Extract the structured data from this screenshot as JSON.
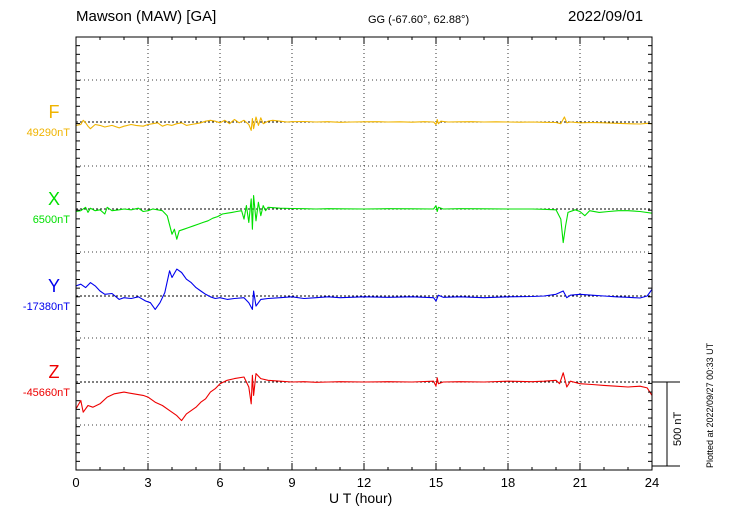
{
  "header": {
    "station": "Mawson (MAW)  [GA]",
    "coords": "GG (-67.60°,  62.88°)",
    "date": "2022/09/01"
  },
  "footer_note": "Plotted at 2022/09/27 00:33 UT",
  "scale_bar": {
    "label": "500 nT",
    "value_nT": 500
  },
  "chart_data": {
    "type": "line",
    "xlabel": "U T (hour)",
    "xlim": [
      0,
      24
    ],
    "xticks": [
      0,
      3,
      6,
      9,
      12,
      15,
      18,
      21,
      24
    ],
    "grid": true,
    "series": [
      {
        "name": "F",
        "baseline_label": "49290nT",
        "baseline_nT": 49290,
        "color": "#f0b400",
        "points": [
          [
            0,
            -20
          ],
          [
            0.2,
            -15
          ],
          [
            0.3,
            10
          ],
          [
            0.4,
            -5
          ],
          [
            0.5,
            -25
          ],
          [
            0.6,
            -40
          ],
          [
            0.8,
            -15
          ],
          [
            1.0,
            -20
          ],
          [
            1.2,
            -30
          ],
          [
            1.5,
            -20
          ],
          [
            1.8,
            -35
          ],
          [
            2.0,
            -25
          ],
          [
            2.3,
            -15
          ],
          [
            2.5,
            -20
          ],
          [
            2.8,
            -25
          ],
          [
            3.0,
            -15
          ],
          [
            3.2,
            -10
          ],
          [
            3.4,
            -5
          ],
          [
            3.6,
            -25
          ],
          [
            3.8,
            -15
          ],
          [
            4.0,
            -20
          ],
          [
            4.2,
            -10
          ],
          [
            4.4,
            -5
          ],
          [
            4.6,
            -20
          ],
          [
            4.8,
            -15
          ],
          [
            5.0,
            -10
          ],
          [
            5.2,
            -5
          ],
          [
            5.4,
            5
          ],
          [
            5.6,
            10
          ],
          [
            5.8,
            5
          ],
          [
            6.0,
            -5
          ],
          [
            6.2,
            10
          ],
          [
            6.4,
            -10
          ],
          [
            6.6,
            15
          ],
          [
            6.8,
            -5
          ],
          [
            7.0,
            10
          ],
          [
            7.2,
            -15
          ],
          [
            7.3,
            -50
          ],
          [
            7.35,
            20
          ],
          [
            7.4,
            -40
          ],
          [
            7.5,
            30
          ],
          [
            7.6,
            -20
          ],
          [
            7.7,
            25
          ],
          [
            7.8,
            -10
          ],
          [
            8.0,
            5
          ],
          [
            8.2,
            10
          ],
          [
            8.5,
            5
          ],
          [
            8.8,
            0
          ],
          [
            9.0,
            2
          ],
          [
            9.5,
            3
          ],
          [
            10,
            0
          ],
          [
            10.5,
            2
          ],
          [
            11,
            -2
          ],
          [
            11.5,
            0
          ],
          [
            12,
            1
          ],
          [
            12.5,
            2
          ],
          [
            13,
            0
          ],
          [
            13.5,
            1
          ],
          [
            14,
            -1
          ],
          [
            14.5,
            2
          ],
          [
            14.9,
            0
          ],
          [
            15.0,
            -15
          ],
          [
            15.05,
            15
          ],
          [
            15.1,
            -10
          ],
          [
            15.2,
            5
          ],
          [
            15.5,
            0
          ],
          [
            16,
            1
          ],
          [
            16.5,
            2
          ],
          [
            17,
            0
          ],
          [
            17.5,
            1
          ],
          [
            18,
            0
          ],
          [
            18.5,
            -1
          ],
          [
            19,
            0
          ],
          [
            19.5,
            -2
          ],
          [
            20,
            -3
          ],
          [
            20.2,
            -10
          ],
          [
            20.35,
            30
          ],
          [
            20.45,
            -5
          ],
          [
            20.6,
            0
          ],
          [
            21,
            -5
          ],
          [
            21.5,
            -3
          ],
          [
            22,
            -5
          ],
          [
            22.5,
            -8
          ],
          [
            23,
            -10
          ],
          [
            23.5,
            -12
          ],
          [
            23.8,
            -8
          ],
          [
            24,
            -10
          ]
        ]
      },
      {
        "name": "X",
        "baseline_label": "6500nT",
        "baseline_nT": 6500,
        "color": "#00e000",
        "points": [
          [
            0,
            -15
          ],
          [
            0.2,
            -10
          ],
          [
            0.4,
            10
          ],
          [
            0.5,
            -20
          ],
          [
            0.6,
            5
          ],
          [
            0.8,
            -10
          ],
          [
            1.0,
            -5
          ],
          [
            1.2,
            -30
          ],
          [
            1.3,
            10
          ],
          [
            1.5,
            -10
          ],
          [
            1.8,
            -5
          ],
          [
            2.0,
            0
          ],
          [
            2.3,
            -5
          ],
          [
            2.6,
            5
          ],
          [
            2.8,
            -15
          ],
          [
            3.0,
            -10
          ],
          [
            3.2,
            0
          ],
          [
            3.4,
            -5
          ],
          [
            3.6,
            -10
          ],
          [
            3.8,
            -40
          ],
          [
            4.0,
            -150
          ],
          [
            4.1,
            -120
          ],
          [
            4.2,
            -180
          ],
          [
            4.3,
            -130
          ],
          [
            4.5,
            -120
          ],
          [
            4.7,
            -110
          ],
          [
            4.9,
            -100
          ],
          [
            5.1,
            -90
          ],
          [
            5.3,
            -80
          ],
          [
            5.5,
            -70
          ],
          [
            5.7,
            -55
          ],
          [
            5.9,
            -45
          ],
          [
            6.1,
            -30
          ],
          [
            6.3,
            -25
          ],
          [
            6.5,
            -20
          ],
          [
            6.7,
            -15
          ],
          [
            6.9,
            -10
          ],
          [
            7.0,
            -60
          ],
          [
            7.1,
            20
          ],
          [
            7.2,
            -80
          ],
          [
            7.3,
            60
          ],
          [
            7.35,
            -120
          ],
          [
            7.4,
            80
          ],
          [
            7.5,
            -70
          ],
          [
            7.6,
            40
          ],
          [
            7.7,
            -40
          ],
          [
            7.8,
            20
          ],
          [
            7.9,
            -10
          ],
          [
            8.0,
            10
          ],
          [
            8.5,
            5
          ],
          [
            9.0,
            3
          ],
          [
            9.5,
            2
          ],
          [
            10,
            0
          ],
          [
            10.5,
            2
          ],
          [
            11,
            1
          ],
          [
            12,
            0
          ],
          [
            13,
            2
          ],
          [
            14,
            1
          ],
          [
            14.9,
            0
          ],
          [
            15.0,
            20
          ],
          [
            15.05,
            -15
          ],
          [
            15.1,
            10
          ],
          [
            15.3,
            0
          ],
          [
            16,
            2
          ],
          [
            17,
            1
          ],
          [
            18,
            0
          ],
          [
            19,
            0
          ],
          [
            19.5,
            -2
          ],
          [
            20.0,
            -5
          ],
          [
            20.2,
            -60
          ],
          [
            20.3,
            -200
          ],
          [
            20.4,
            -100
          ],
          [
            20.5,
            -20
          ],
          [
            20.8,
            -5
          ],
          [
            21.0,
            -15
          ],
          [
            21.2,
            -40
          ],
          [
            21.4,
            -10
          ],
          [
            21.8,
            -20
          ],
          [
            22.2,
            -15
          ],
          [
            22.6,
            -10
          ],
          [
            23,
            -10
          ],
          [
            23.5,
            -15
          ],
          [
            24,
            -25
          ]
        ]
      },
      {
        "name": "Y",
        "baseline_label": "-17380nT",
        "baseline_nT": -17380,
        "color": "#0000ee",
        "points": [
          [
            0,
            60
          ],
          [
            0.2,
            70
          ],
          [
            0.4,
            50
          ],
          [
            0.6,
            80
          ],
          [
            0.8,
            60
          ],
          [
            1.0,
            30
          ],
          [
            1.2,
            10
          ],
          [
            1.5,
            15
          ],
          [
            1.8,
            -20
          ],
          [
            2.0,
            -10
          ],
          [
            2.3,
            -15
          ],
          [
            2.6,
            -5
          ],
          [
            2.9,
            -30
          ],
          [
            3.1,
            -40
          ],
          [
            3.3,
            -80
          ],
          [
            3.5,
            -40
          ],
          [
            3.7,
            20
          ],
          [
            3.9,
            150
          ],
          [
            4.0,
            110
          ],
          [
            4.2,
            160
          ],
          [
            4.4,
            140
          ],
          [
            4.6,
            100
          ],
          [
            4.8,
            80
          ],
          [
            5.0,
            50
          ],
          [
            5.2,
            30
          ],
          [
            5.4,
            10
          ],
          [
            5.6,
            -5
          ],
          [
            5.8,
            -15
          ],
          [
            6.0,
            -10
          ],
          [
            6.3,
            -20
          ],
          [
            6.6,
            -15
          ],
          [
            7.0,
            -10
          ],
          [
            7.2,
            -40
          ],
          [
            7.35,
            -80
          ],
          [
            7.4,
            30
          ],
          [
            7.5,
            -60
          ],
          [
            7.7,
            -20
          ],
          [
            8.0,
            -15
          ],
          [
            8.5,
            -10
          ],
          [
            9.0,
            -5
          ],
          [
            9.5,
            -15
          ],
          [
            10,
            -10
          ],
          [
            10.5,
            -5
          ],
          [
            11,
            -10
          ],
          [
            12,
            -5
          ],
          [
            13,
            -8
          ],
          [
            14,
            -5
          ],
          [
            14.9,
            -10
          ],
          [
            15.0,
            -30
          ],
          [
            15.1,
            5
          ],
          [
            15.3,
            -8
          ],
          [
            16,
            -5
          ],
          [
            17,
            -10
          ],
          [
            18,
            -5
          ],
          [
            19,
            -3
          ],
          [
            19.5,
            0
          ],
          [
            20,
            10
          ],
          [
            20.3,
            30
          ],
          [
            20.45,
            -10
          ],
          [
            20.6,
            5
          ],
          [
            21,
            10
          ],
          [
            21.5,
            5
          ],
          [
            22,
            0
          ],
          [
            22.5,
            -5
          ],
          [
            23,
            -8
          ],
          [
            23.5,
            -12
          ],
          [
            23.8,
            0
          ],
          [
            24,
            40
          ]
        ]
      },
      {
        "name": "Z",
        "baseline_label": "-45660nT",
        "baseline_nT": -45660,
        "color": "#ee0000",
        "points": [
          [
            0,
            -160
          ],
          [
            0.2,
            -110
          ],
          [
            0.3,
            -180
          ],
          [
            0.5,
            -140
          ],
          [
            0.7,
            -150
          ],
          [
            1.0,
            -130
          ],
          [
            1.3,
            -90
          ],
          [
            1.6,
            -70
          ],
          [
            2.0,
            -60
          ],
          [
            2.4,
            -70
          ],
          [
            2.8,
            -80
          ],
          [
            3.0,
            -90
          ],
          [
            3.3,
            -120
          ],
          [
            3.6,
            -140
          ],
          [
            3.9,
            -170
          ],
          [
            4.2,
            -200
          ],
          [
            4.4,
            -230
          ],
          [
            4.6,
            -190
          ],
          [
            4.8,
            -170
          ],
          [
            5.0,
            -150
          ],
          [
            5.2,
            -120
          ],
          [
            5.4,
            -100
          ],
          [
            5.6,
            -60
          ],
          [
            5.8,
            -40
          ],
          [
            6.0,
            -10
          ],
          [
            6.3,
            10
          ],
          [
            6.6,
            20
          ],
          [
            7.0,
            30
          ],
          [
            7.2,
            -30
          ],
          [
            7.3,
            -130
          ],
          [
            7.35,
            40
          ],
          [
            7.4,
            -80
          ],
          [
            7.5,
            50
          ],
          [
            7.7,
            20
          ],
          [
            8.0,
            10
          ],
          [
            8.5,
            5
          ],
          [
            9.0,
            0
          ],
          [
            9.5,
            2
          ],
          [
            10,
            -2
          ],
          [
            10.5,
            0
          ],
          [
            11,
            2
          ],
          [
            12,
            0
          ],
          [
            13,
            2
          ],
          [
            14,
            0
          ],
          [
            14.9,
            5
          ],
          [
            15.0,
            -25
          ],
          [
            15.05,
            25
          ],
          [
            15.1,
            -10
          ],
          [
            15.3,
            0
          ],
          [
            16,
            2
          ],
          [
            17,
            0
          ],
          [
            18,
            5
          ],
          [
            19,
            2
          ],
          [
            19.5,
            5
          ],
          [
            20.0,
            10
          ],
          [
            20.15,
            -10
          ],
          [
            20.3,
            55
          ],
          [
            20.45,
            -30
          ],
          [
            20.6,
            5
          ],
          [
            21.0,
            -10
          ],
          [
            21.5,
            -15
          ],
          [
            22,
            -20
          ],
          [
            22.5,
            -25
          ],
          [
            23,
            -30
          ],
          [
            23.5,
            -25
          ],
          [
            23.8,
            -35
          ],
          [
            24,
            -80
          ]
        ]
      }
    ]
  }
}
